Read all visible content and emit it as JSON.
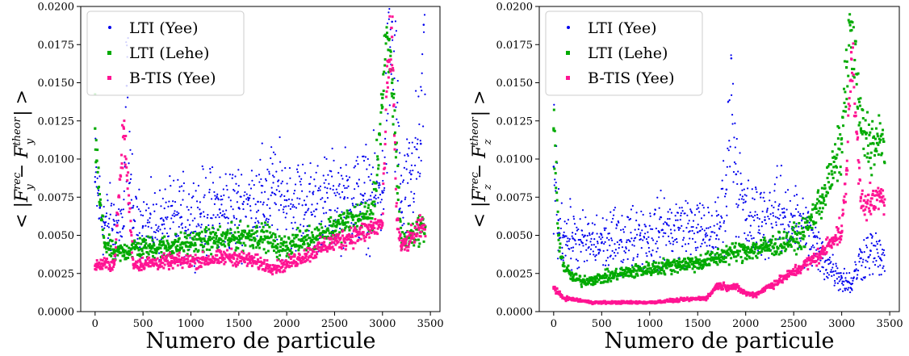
{
  "colors": {
    "yee": "#0000ee",
    "lehe": "#00aa00",
    "btis": "#ff1493",
    "axis": "#000000"
  },
  "chart_data": [
    {
      "type": "scatter",
      "xlabel": "Numero de particule",
      "ylabel": "< |F_y^rec − F_y^theor| >",
      "xlim": [
        -150,
        3600
      ],
      "ylim": [
        0,
        0.02
      ],
      "xticks": [
        "0",
        "500",
        "1000",
        "1500",
        "2000",
        "2500",
        "3000",
        "3500"
      ],
      "yticks": [
        "0.0000",
        "0.0025",
        "0.0050",
        "0.0075",
        "0.0100",
        "0.0125",
        "0.0150",
        "0.0175",
        "0.0200"
      ],
      "legend_position": "top-left",
      "series": [
        {
          "name": "LTI (Yee)",
          "color": "#0000ee",
          "marker": "dot",
          "points": [
            [
              0,
              0.0085
            ],
            [
              50,
              0.0068
            ],
            [
              100,
              0.0058
            ],
            [
              200,
              0.0057
            ],
            [
              300,
              0.0056
            ],
            [
              330,
              0.0148
            ],
            [
              400,
              0.0055
            ],
            [
              500,
              0.0056
            ],
            [
              700,
              0.0057
            ],
            [
              900,
              0.0062
            ],
            [
              1100,
              0.0064
            ],
            [
              1300,
              0.0067
            ],
            [
              1500,
              0.0068
            ],
            [
              1700,
              0.0072
            ],
            [
              1850,
              0.0078
            ],
            [
              2000,
              0.0073
            ],
            [
              2200,
              0.007
            ],
            [
              2400,
              0.0072
            ],
            [
              2600,
              0.0074
            ],
            [
              2800,
              0.0076
            ],
            [
              3000,
              0.0078
            ],
            [
              3100,
              0.019
            ],
            [
              3200,
              0.0065
            ],
            [
              3300,
              0.009
            ],
            [
              3400,
              0.011
            ],
            [
              3430,
              0.0188
            ]
          ]
        },
        {
          "name": "LTI (Lehe)",
          "color": "#00aa00",
          "marker": "square",
          "points": [
            [
              0,
              0.012
            ],
            [
              50,
              0.007
            ],
            [
              100,
              0.0045
            ],
            [
              200,
              0.0038
            ],
            [
              300,
              0.0039
            ],
            [
              400,
              0.0042
            ],
            [
              600,
              0.0042
            ],
            [
              800,
              0.0043
            ],
            [
              1000,
              0.0045
            ],
            [
              1200,
              0.0047
            ],
            [
              1400,
              0.0048
            ],
            [
              1600,
              0.005
            ],
            [
              1800,
              0.0049
            ],
            [
              1900,
              0.0042
            ],
            [
              2000,
              0.0043
            ],
            [
              2200,
              0.0047
            ],
            [
              2400,
              0.0052
            ],
            [
              2600,
              0.0058
            ],
            [
              2800,
              0.0062
            ],
            [
              2900,
              0.0064
            ],
            [
              3000,
              0.014
            ],
            [
              3050,
              0.018
            ],
            [
              3100,
              0.015
            ],
            [
              3200,
              0.0045
            ],
            [
              3300,
              0.005
            ],
            [
              3400,
              0.0055
            ]
          ]
        },
        {
          "name": "B-TIS (Yee)",
          "color": "#ff1493",
          "marker": "square",
          "points": [
            [
              0,
              0.003
            ],
            [
              100,
              0.0031
            ],
            [
              200,
              0.0031
            ],
            [
              300,
              0.012
            ],
            [
              400,
              0.0031
            ],
            [
              600,
              0.0032
            ],
            [
              800,
              0.0033
            ],
            [
              1000,
              0.0033
            ],
            [
              1200,
              0.0034
            ],
            [
              1400,
              0.0036
            ],
            [
              1600,
              0.0034
            ],
            [
              1800,
              0.003
            ],
            [
              1900,
              0.0029
            ],
            [
              2000,
              0.0031
            ],
            [
              2200,
              0.0037
            ],
            [
              2400,
              0.0043
            ],
            [
              2600,
              0.0048
            ],
            [
              2800,
              0.0052
            ],
            [
              3000,
              0.0058
            ],
            [
              3050,
              0.015
            ],
            [
              3100,
              0.018
            ],
            [
              3150,
              0.006
            ],
            [
              3200,
              0.0042
            ],
            [
              3300,
              0.0048
            ],
            [
              3400,
              0.0055
            ]
          ]
        }
      ]
    },
    {
      "type": "scatter",
      "xlabel": "Numero de particule",
      "ylabel": "< |F_z^rec − F_z^theor| >",
      "xlim": [
        -150,
        3600
      ],
      "ylim": [
        0,
        0.02
      ],
      "xticks": [
        "0",
        "500",
        "1000",
        "1500",
        "2000",
        "2500",
        "3000",
        "3500"
      ],
      "yticks": [
        "0.0000",
        "0.0025",
        "0.0050",
        "0.0075",
        "0.0100",
        "0.0125",
        "0.0150",
        "0.0175",
        "0.0200"
      ],
      "legend_position": "top-left",
      "series": [
        {
          "name": "LTI (Yee)",
          "color": "#0000ee",
          "marker": "dot",
          "points": [
            [
              0,
              0.0095
            ],
            [
              50,
              0.006
            ],
            [
              100,
              0.005
            ],
            [
              200,
              0.0048
            ],
            [
              300,
              0.0045
            ],
            [
              500,
              0.0045
            ],
            [
              700,
              0.0047
            ],
            [
              900,
              0.005
            ],
            [
              1100,
              0.0052
            ],
            [
              1300,
              0.0055
            ],
            [
              1500,
              0.0052
            ],
            [
              1700,
              0.005
            ],
            [
              1800,
              0.008
            ],
            [
              1850,
              0.0166
            ],
            [
              1900,
              0.009
            ],
            [
              2000,
              0.006
            ],
            [
              2200,
              0.006
            ],
            [
              2400,
              0.0065
            ],
            [
              2600,
              0.0055
            ],
            [
              2800,
              0.0035
            ],
            [
              3000,
              0.0022
            ],
            [
              3100,
              0.0018
            ],
            [
              3200,
              0.0035
            ],
            [
              3300,
              0.004
            ],
            [
              3400,
              0.0035
            ]
          ]
        },
        {
          "name": "LTI (Lehe)",
          "color": "#00aa00",
          "marker": "square",
          "points": [
            [
              0,
              0.012
            ],
            [
              50,
              0.005
            ],
            [
              100,
              0.003
            ],
            [
              200,
              0.0022
            ],
            [
              300,
              0.002
            ],
            [
              500,
              0.0022
            ],
            [
              700,
              0.0025
            ],
            [
              900,
              0.0027
            ],
            [
              1100,
              0.0029
            ],
            [
              1300,
              0.0031
            ],
            [
              1500,
              0.0032
            ],
            [
              1700,
              0.0035
            ],
            [
              1800,
              0.0038
            ],
            [
              2000,
              0.004
            ],
            [
              2200,
              0.0042
            ],
            [
              2400,
              0.0045
            ],
            [
              2600,
              0.005
            ],
            [
              2800,
              0.0075
            ],
            [
              2900,
              0.009
            ],
            [
              3000,
              0.011
            ],
            [
              3050,
              0.016
            ],
            [
              3100,
              0.019
            ],
            [
              3200,
              0.012
            ],
            [
              3300,
              0.011
            ]
          ]
        },
        {
          "name": "B-TIS (Yee)",
          "color": "#ff1493",
          "marker": "square",
          "points": [
            [
              0,
              0.0016
            ],
            [
              50,
              0.0012
            ],
            [
              100,
              0.0009
            ],
            [
              200,
              0.0008
            ],
            [
              400,
              0.0006
            ],
            [
              600,
              0.0006
            ],
            [
              800,
              0.0006
            ],
            [
              1000,
              0.0006
            ],
            [
              1200,
              0.0007
            ],
            [
              1400,
              0.0008
            ],
            [
              1600,
              0.0009
            ],
            [
              1700,
              0.0017
            ],
            [
              1900,
              0.0016
            ],
            [
              2000,
              0.0012
            ],
            [
              2100,
              0.0011
            ],
            [
              2200,
              0.0015
            ],
            [
              2400,
              0.0022
            ],
            [
              2600,
              0.003
            ],
            [
              2800,
              0.0038
            ],
            [
              2900,
              0.0048
            ],
            [
              3000,
              0.0052
            ],
            [
              3050,
              0.009
            ],
            [
              3100,
              0.017
            ],
            [
              3200,
              0.0075
            ],
            [
              3300,
              0.007
            ],
            [
              3400,
              0.0075
            ]
          ]
        }
      ]
    }
  ]
}
